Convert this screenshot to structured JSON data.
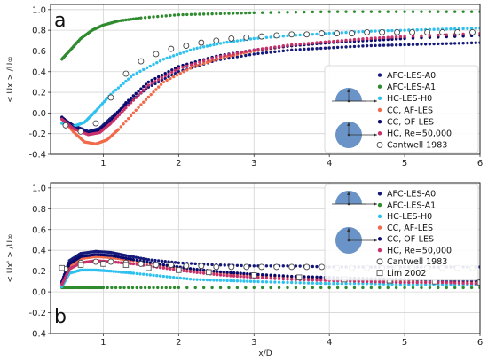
{
  "figure": {
    "xlabel": "x/D"
  },
  "colors": {
    "AFC-LES-A0": "#151a7a",
    "AFC-LES-A1": "#2e8b2e",
    "HC-LES-H0": "#2ec0ef",
    "CC, AF-LES": "#f06a4a",
    "CC, OF-LES": "#0a0a6e",
    "HC, Re=50,000": "#c8306a",
    "Cantwell 1983": "#444444",
    "Lim 2002": "#555555",
    "shape": "#6a93c8"
  },
  "chart_data": [
    {
      "type": "scatter",
      "panel_label": "a",
      "ylabel": "< Ux > /U∞",
      "xlim": [
        0.3,
        6
      ],
      "ylim": [
        -0.4,
        1.05
      ],
      "xticks": [
        1,
        2,
        3,
        4,
        5,
        6
      ],
      "yticks": [
        -0.4,
        -0.2,
        0.0,
        0.2,
        0.4,
        0.6,
        0.8,
        1.0
      ],
      "grid": true,
      "legend_position": "lower-right",
      "series": [
        {
          "name": "AFC-LES-A0",
          "marker": "filled-circle",
          "x": [
            0.45,
            0.6,
            0.8,
            0.95,
            1.1,
            1.3,
            1.6,
            2.0,
            2.5,
            3.0,
            3.5,
            4.0,
            4.5,
            5.0,
            5.5,
            6.0
          ],
          "y": [
            -0.05,
            -0.12,
            -0.18,
            -0.15,
            -0.05,
            0.08,
            0.25,
            0.4,
            0.51,
            0.57,
            0.61,
            0.63,
            0.65,
            0.66,
            0.67,
            0.68
          ]
        },
        {
          "name": "AFC-LES-A1",
          "marker": "filled-circle",
          "x": [
            0.45,
            0.55,
            0.7,
            0.85,
            1.0,
            1.2,
            1.5,
            2.0,
            2.5,
            3.0,
            4.0,
            5.0,
            6.0
          ],
          "y": [
            0.52,
            0.6,
            0.72,
            0.8,
            0.85,
            0.89,
            0.92,
            0.95,
            0.96,
            0.97,
            0.98,
            0.98,
            0.98
          ]
        },
        {
          "name": "HC-LES-H0",
          "marker": "filled-circle",
          "x": [
            0.45,
            0.6,
            0.75,
            0.9,
            1.1,
            1.4,
            1.8,
            2.2,
            2.6,
            3.0,
            3.5,
            4.0,
            4.5,
            5.0,
            5.5,
            6.0
          ],
          "y": [
            -0.1,
            -0.13,
            -0.09,
            0.02,
            0.18,
            0.37,
            0.52,
            0.62,
            0.68,
            0.72,
            0.75,
            0.77,
            0.79,
            0.8,
            0.81,
            0.82
          ]
        },
        {
          "name": "CC, AF-LES",
          "marker": "filled-circle",
          "x": [
            0.45,
            0.6,
            0.75,
            0.9,
            1.05,
            1.2,
            1.5,
            1.8,
            2.2,
            2.6,
            3.0,
            3.5,
            4.0,
            4.5,
            5.0,
            6.0
          ],
          "y": [
            -0.05,
            -0.18,
            -0.28,
            -0.3,
            -0.26,
            -0.16,
            0.08,
            0.3,
            0.45,
            0.54,
            0.6,
            0.65,
            0.68,
            0.71,
            0.73,
            0.76
          ]
        },
        {
          "name": "CC, OF-LES",
          "marker": "filled-circle",
          "x": [
            0.45,
            0.6,
            0.8,
            0.95,
            1.1,
            1.3,
            1.6,
            2.0,
            2.5,
            3.0,
            3.5,
            4.0,
            4.5,
            5.0,
            6.0
          ],
          "y": [
            -0.04,
            -0.14,
            -0.2,
            -0.17,
            -0.08,
            0.1,
            0.3,
            0.45,
            0.55,
            0.61,
            0.65,
            0.68,
            0.7,
            0.72,
            0.75
          ]
        },
        {
          "name": "HC, Re=50,000",
          "marker": "filled-circle",
          "x": [
            0.45,
            0.6,
            0.8,
            0.95,
            1.1,
            1.3,
            1.6,
            2.0,
            2.5,
            3.0,
            3.5,
            4.0,
            4.5,
            5.0,
            6.0
          ],
          "y": [
            -0.06,
            -0.15,
            -0.21,
            -0.19,
            -0.1,
            0.05,
            0.27,
            0.43,
            0.54,
            0.61,
            0.66,
            0.69,
            0.72,
            0.74,
            0.77
          ]
        },
        {
          "name": "Cantwell 1983",
          "marker": "open-circle",
          "x": [
            0.5,
            0.7,
            0.9,
            1.1,
            1.3,
            1.5,
            1.7,
            1.9,
            2.1,
            2.3,
            2.5,
            2.7,
            2.9,
            3.1,
            3.3,
            3.5,
            3.7,
            3.9,
            4.1,
            4.3,
            4.5,
            4.7,
            4.9,
            5.1,
            5.3,
            5.5,
            5.7,
            5.9
          ],
          "y": [
            -0.12,
            -0.18,
            -0.1,
            0.15,
            0.38,
            0.5,
            0.57,
            0.62,
            0.65,
            0.68,
            0.7,
            0.72,
            0.73,
            0.74,
            0.75,
            0.76,
            0.76,
            0.77,
            0.77,
            0.77,
            0.78,
            0.78,
            0.78,
            0.78,
            0.78,
            0.78,
            0.78,
            0.78
          ]
        }
      ]
    },
    {
      "type": "scatter",
      "panel_label": "b",
      "ylabel": "< Ux' > /U∞",
      "xlabel": "x/D",
      "xlim": [
        0.3,
        6
      ],
      "ylim": [
        -0.4,
        1.05
      ],
      "xticks": [
        1,
        2,
        3,
        4,
        5,
        6
      ],
      "yticks": [
        -0.4,
        -0.2,
        0.0,
        0.2,
        0.4,
        0.6,
        0.8,
        1.0
      ],
      "grid": true,
      "legend_position": "upper-right",
      "series": [
        {
          "name": "AFC-LES-A0",
          "marker": "filled-circle",
          "x": [
            0.45,
            0.55,
            0.7,
            0.9,
            1.1,
            1.3,
            1.6,
            2.0,
            2.5,
            3.0,
            3.5,
            4.0,
            4.5,
            5.0,
            5.5,
            6.0
          ],
          "y": [
            0.1,
            0.3,
            0.37,
            0.39,
            0.38,
            0.35,
            0.31,
            0.28,
            0.26,
            0.25,
            0.25,
            0.24,
            0.24,
            0.24,
            0.24,
            0.24
          ]
        },
        {
          "name": "AFC-LES-A1",
          "marker": "filled-circle",
          "x": [
            0.45,
            0.6,
            0.8,
            1.0,
            1.5,
            2.0,
            3.0,
            4.0,
            5.0,
            6.0
          ],
          "y": [
            0.04,
            0.04,
            0.04,
            0.04,
            0.04,
            0.04,
            0.04,
            0.04,
            0.04,
            0.04
          ]
        },
        {
          "name": "HC-LES-H0",
          "marker": "filled-circle",
          "x": [
            0.45,
            0.55,
            0.7,
            0.9,
            1.1,
            1.4,
            1.8,
            2.2,
            2.6,
            3.0,
            3.5,
            4.0,
            4.5,
            5.0,
            5.5,
            6.0
          ],
          "y": [
            0.05,
            0.18,
            0.21,
            0.21,
            0.2,
            0.18,
            0.15,
            0.12,
            0.11,
            0.1,
            0.09,
            0.08,
            0.08,
            0.07,
            0.07,
            0.07
          ]
        },
        {
          "name": "CC, AF-LES",
          "marker": "filled-circle",
          "x": [
            0.45,
            0.55,
            0.7,
            0.9,
            1.1,
            1.4,
            1.8,
            2.2,
            2.6,
            3.0,
            3.5,
            4.0,
            4.5,
            5.0,
            5.5,
            6.0
          ],
          "y": [
            0.08,
            0.25,
            0.32,
            0.34,
            0.33,
            0.3,
            0.25,
            0.21,
            0.18,
            0.16,
            0.14,
            0.13,
            0.12,
            0.11,
            0.1,
            0.1
          ]
        },
        {
          "name": "CC, OF-LES",
          "marker": "filled-circle",
          "x": [
            0.45,
            0.55,
            0.7,
            0.9,
            1.1,
            1.4,
            1.8,
            2.2,
            2.6,
            3.0,
            3.5,
            4.0,
            4.5,
            5.0,
            5.5,
            6.0
          ],
          "y": [
            0.09,
            0.27,
            0.34,
            0.36,
            0.35,
            0.31,
            0.26,
            0.22,
            0.19,
            0.17,
            0.15,
            0.14,
            0.13,
            0.12,
            0.11,
            0.11
          ]
        },
        {
          "name": "HC, Re=50,000",
          "marker": "filled-circle",
          "x": [
            0.45,
            0.55,
            0.7,
            0.9,
            1.1,
            1.4,
            1.8,
            2.2,
            2.6,
            3.0,
            3.5,
            4.0,
            4.5,
            5.0,
            5.5,
            6.0
          ],
          "y": [
            0.07,
            0.22,
            0.28,
            0.3,
            0.29,
            0.27,
            0.23,
            0.19,
            0.16,
            0.14,
            0.12,
            0.11,
            0.1,
            0.09,
            0.09,
            0.08
          ]
        },
        {
          "name": "Cantwell 1983",
          "marker": "open-circle",
          "x": [
            0.5,
            0.7,
            0.9,
            1.1,
            1.3,
            1.5,
            1.7,
            1.9,
            2.1,
            2.3,
            2.5,
            2.7,
            2.9,
            3.1,
            3.3,
            3.5,
            3.7,
            3.9,
            4.1,
            4.3,
            4.5,
            4.7,
            4.9,
            5.1,
            5.3,
            5.5,
            5.7,
            5.9
          ],
          "y": [
            0.22,
            0.28,
            0.29,
            0.29,
            0.28,
            0.27,
            0.26,
            0.26,
            0.25,
            0.25,
            0.24,
            0.24,
            0.24,
            0.24,
            0.24,
            0.24,
            0.24,
            0.24,
            0.23,
            0.23,
            0.23,
            0.23,
            0.23,
            0.23,
            0.23,
            0.23,
            0.23,
            0.23
          ]
        },
        {
          "name": "Lim 2002",
          "marker": "open-square",
          "x": [
            0.45,
            0.7,
            1.0,
            1.3,
            1.6,
            2.0,
            2.4,
            3.0,
            3.6,
            4.2,
            4.8,
            5.4,
            6.0
          ],
          "y": [
            0.23,
            0.26,
            0.27,
            0.26,
            0.23,
            0.21,
            0.19,
            0.16,
            0.14,
            0.12,
            0.11,
            0.1,
            0.09
          ]
        }
      ]
    }
  ]
}
